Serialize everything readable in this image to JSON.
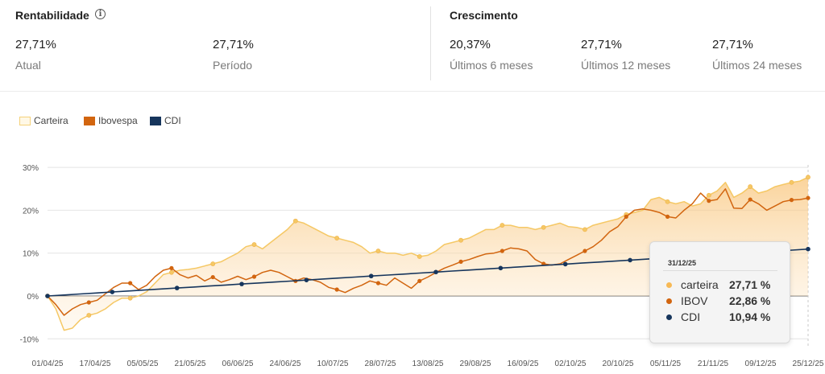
{
  "rentabilidade": {
    "title": "Rentabilidade",
    "info_icon": "info-icon",
    "atual_value": "27,71%",
    "atual_label": "Atual",
    "periodo_value": "27,71%",
    "periodo_label": "Período"
  },
  "crescimento": {
    "title": "Crescimento",
    "items": [
      {
        "value": "20,37%",
        "label": "Últimos 6 meses"
      },
      {
        "value": "27,71%",
        "label": "Últimos 12 meses"
      },
      {
        "value": "27,71%",
        "label": "Últimos 24 meses"
      }
    ]
  },
  "legend": [
    {
      "label": "Carteira",
      "color": "#f5d27a",
      "style": "outline"
    },
    {
      "label": "Ibovespa",
      "color": "#d2650f",
      "style": "fill"
    },
    {
      "label": "CDI",
      "color": "#16355c",
      "style": "fill"
    }
  ],
  "tooltip": {
    "date": "31/12/25",
    "rows": [
      {
        "name": "carteira",
        "value": "27,71 %",
        "color": "#f7b955"
      },
      {
        "name": "IBOV",
        "value": "22,86 %",
        "color": "#d2650f"
      },
      {
        "name": "CDI",
        "value": "10,94 %",
        "color": "#16355c"
      }
    ]
  },
  "chart_data": {
    "type": "line",
    "ylim": [
      -12,
      32
    ],
    "yticks": [
      -10,
      0,
      10,
      20,
      30
    ],
    "ytick_labels": [
      "-10%",
      "0%",
      "10%",
      "20%",
      "30%"
    ],
    "xtick_labels": [
      "01/04/25",
      "17/04/25",
      "05/05/25",
      "21/05/25",
      "06/06/25",
      "24/06/25",
      "10/07/25",
      "28/07/25",
      "13/08/25",
      "29/08/25",
      "16/09/25",
      "02/10/25",
      "20/10/25",
      "05/11/25",
      "21/11/25",
      "09/12/25",
      "25/12/25"
    ],
    "grid": true,
    "legend_position": "top-left",
    "series": [
      {
        "name": "Carteira",
        "color": "#f5c865",
        "values": [
          0,
          -3,
          -8,
          -7.5,
          -5.5,
          -4.5,
          -4,
          -3,
          -1.5,
          -0.5,
          -0.5,
          0,
          1,
          3,
          5,
          5.5,
          6,
          6.2,
          6.5,
          7,
          7.5,
          8,
          9,
          10,
          11.5,
          12,
          11,
          12.5,
          14,
          15.5,
          17.5,
          17,
          16,
          15,
          14,
          13.5,
          13,
          12.5,
          11.5,
          10,
          10.5,
          10,
          10,
          9.5,
          10,
          9.2,
          9.5,
          10.5,
          12,
          12.5,
          13,
          13.5,
          14.5,
          15.5,
          15.5,
          16.5,
          16.5,
          16,
          16,
          15.5,
          16,
          16.5,
          17,
          16.2,
          16,
          15.5,
          16.5,
          17,
          17.5,
          18,
          19,
          19.5,
          20,
          22.5,
          23,
          22,
          21.5,
          22,
          21,
          21.5,
          23.5,
          24.5,
          26.5,
          23,
          24,
          25.5,
          24,
          24.5,
          25.5,
          26,
          26.5,
          26.8,
          27.71
        ]
      },
      {
        "name": "Ibovespa",
        "color": "#d2650f",
        "values": [
          0,
          -2,
          -4.5,
          -3,
          -2,
          -1.5,
          -1,
          0.5,
          2,
          3,
          3,
          1.5,
          2.5,
          4.5,
          6,
          6.5,
          5,
          4.2,
          4.8,
          3.5,
          4.4,
          3.2,
          3.8,
          4.6,
          3.8,
          4.5,
          5.5,
          6,
          5.5,
          4.5,
          3.5,
          4.2,
          3.8,
          3.2,
          2,
          1.5,
          0.8,
          1.8,
          2.5,
          3.5,
          3,
          2.5,
          4.2,
          3,
          1.8,
          3.5,
          4.4,
          5.5,
          6.5,
          7.2,
          8,
          8.5,
          9.2,
          9.8,
          10,
          10.5,
          11.2,
          11,
          10.5,
          8.5,
          7.5,
          7.2,
          7.5,
          8.5,
          9.5,
          10.5,
          11.5,
          13,
          15,
          16.2,
          18.5,
          20,
          20.3,
          20,
          19.5,
          18.5,
          18.2,
          20,
          21.5,
          24,
          22.2,
          22.5,
          25,
          20.5,
          20.4,
          22.5,
          21.5,
          20,
          21,
          22,
          22.4,
          22.5,
          22.86
        ]
      },
      {
        "name": "CDI",
        "color": "#16355c",
        "values": [
          0,
          0.23,
          0.46,
          0.7,
          0.93,
          1.16,
          1.39,
          1.63,
          1.86,
          2.09,
          2.32,
          2.56,
          2.79,
          3.02,
          3.25,
          3.48,
          3.72,
          3.95,
          4.18,
          4.41,
          4.65,
          4.88,
          5.11,
          5.34,
          5.58,
          5.81,
          6.04,
          6.27,
          6.51,
          6.74,
          6.97,
          7.2,
          7.43,
          7.67,
          7.9,
          8.13,
          8.36,
          8.6,
          8.83,
          9.06,
          9.29,
          9.53,
          9.76,
          9.99,
          10.22,
          10.46,
          10.69,
          10.94
        ]
      }
    ]
  }
}
